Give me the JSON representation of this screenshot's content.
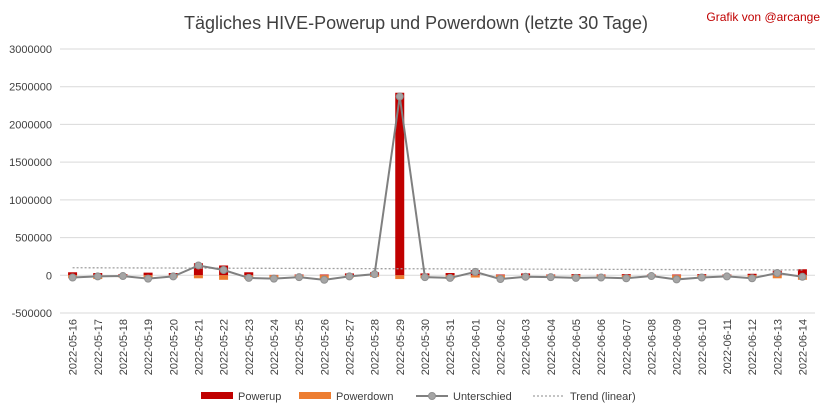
{
  "chart_data": {
    "type": "bar",
    "title": "Tägliches HIVE-Powerup und Powerdown (letzte 30 Tage)",
    "credit": "Grafik von @arcange",
    "xlabel": "",
    "ylabel": "",
    "ylim": [
      -500000,
      3000000
    ],
    "yticks": [
      "3000000",
      "2500000",
      "2000000",
      "1500000",
      "1000000",
      "500000",
      "0",
      "-500000"
    ],
    "grid": true,
    "legend_position": "bottom",
    "categories": [
      "2022-05-16",
      "2022-05-17",
      "2022-05-18",
      "2022-05-19",
      "2022-05-20",
      "2022-05-21",
      "2022-05-22",
      "2022-05-23",
      "2022-05-24",
      "2022-05-25",
      "2022-05-26",
      "2022-05-27",
      "2022-05-28",
      "2022-05-29",
      "2022-05-30",
      "2022-05-31",
      "2022-06-01",
      "2022-06-02",
      "2022-06-03",
      "2022-06-04",
      "2022-06-05",
      "2022-06-06",
      "2022-06-07",
      "2022-06-08",
      "2022-06-09",
      "2022-06-10",
      "2022-06-11",
      "2022-06-12",
      "2022-06-13",
      "2022-06-14"
    ],
    "series": [
      {
        "name": "Powerup",
        "kind": "bar",
        "color": "#c00000",
        "values": [
          40000,
          30000,
          15000,
          35000,
          30000,
          160000,
          130000,
          40000,
          5000,
          10000,
          10000,
          25000,
          40000,
          2420000,
          25000,
          30000,
          70000,
          10000,
          25000,
          10000,
          15000,
          10000,
          15000,
          10000,
          10000,
          15000,
          10000,
          20000,
          60000,
          80000
        ]
      },
      {
        "name": "Powerdown",
        "kind": "bar",
        "color": "#ed7d31",
        "values": [
          -40000,
          -50000,
          -30000,
          -50000,
          -30000,
          -40000,
          -60000,
          -50000,
          -40000,
          -30000,
          -50000,
          -30000,
          -20000,
          -50000,
          -40000,
          -50000,
          -30000,
          -40000,
          -40000,
          -30000,
          -40000,
          -40000,
          -40000,
          -20000,
          -50000,
          -40000,
          -20000,
          -40000,
          -40000,
          -60000
        ]
      },
      {
        "name": "Unterschied",
        "kind": "line",
        "color": "#808080",
        "values": [
          -30000,
          -15000,
          -10000,
          -45000,
          -15000,
          130000,
          70000,
          -35000,
          -45000,
          -25000,
          -60000,
          -15000,
          15000,
          2370000,
          -25000,
          -35000,
          45000,
          -50000,
          -20000,
          -25000,
          -35000,
          -30000,
          -40000,
          -10000,
          -55000,
          -30000,
          -15000,
          -40000,
          30000,
          -20000
        ]
      },
      {
        "name": "Trend (linear)",
        "kind": "trend",
        "color": "#a0a0a0",
        "values": [
          100000,
          99000,
          98000,
          97000,
          96000,
          95000,
          94000,
          93000,
          92000,
          91000,
          90000,
          89000,
          88000,
          87000,
          86000,
          85000,
          84000,
          83000,
          82000,
          81000,
          80000,
          79000,
          78000,
          77000,
          76000,
          75000,
          74000,
          73000,
          72000,
          71000
        ]
      }
    ]
  }
}
